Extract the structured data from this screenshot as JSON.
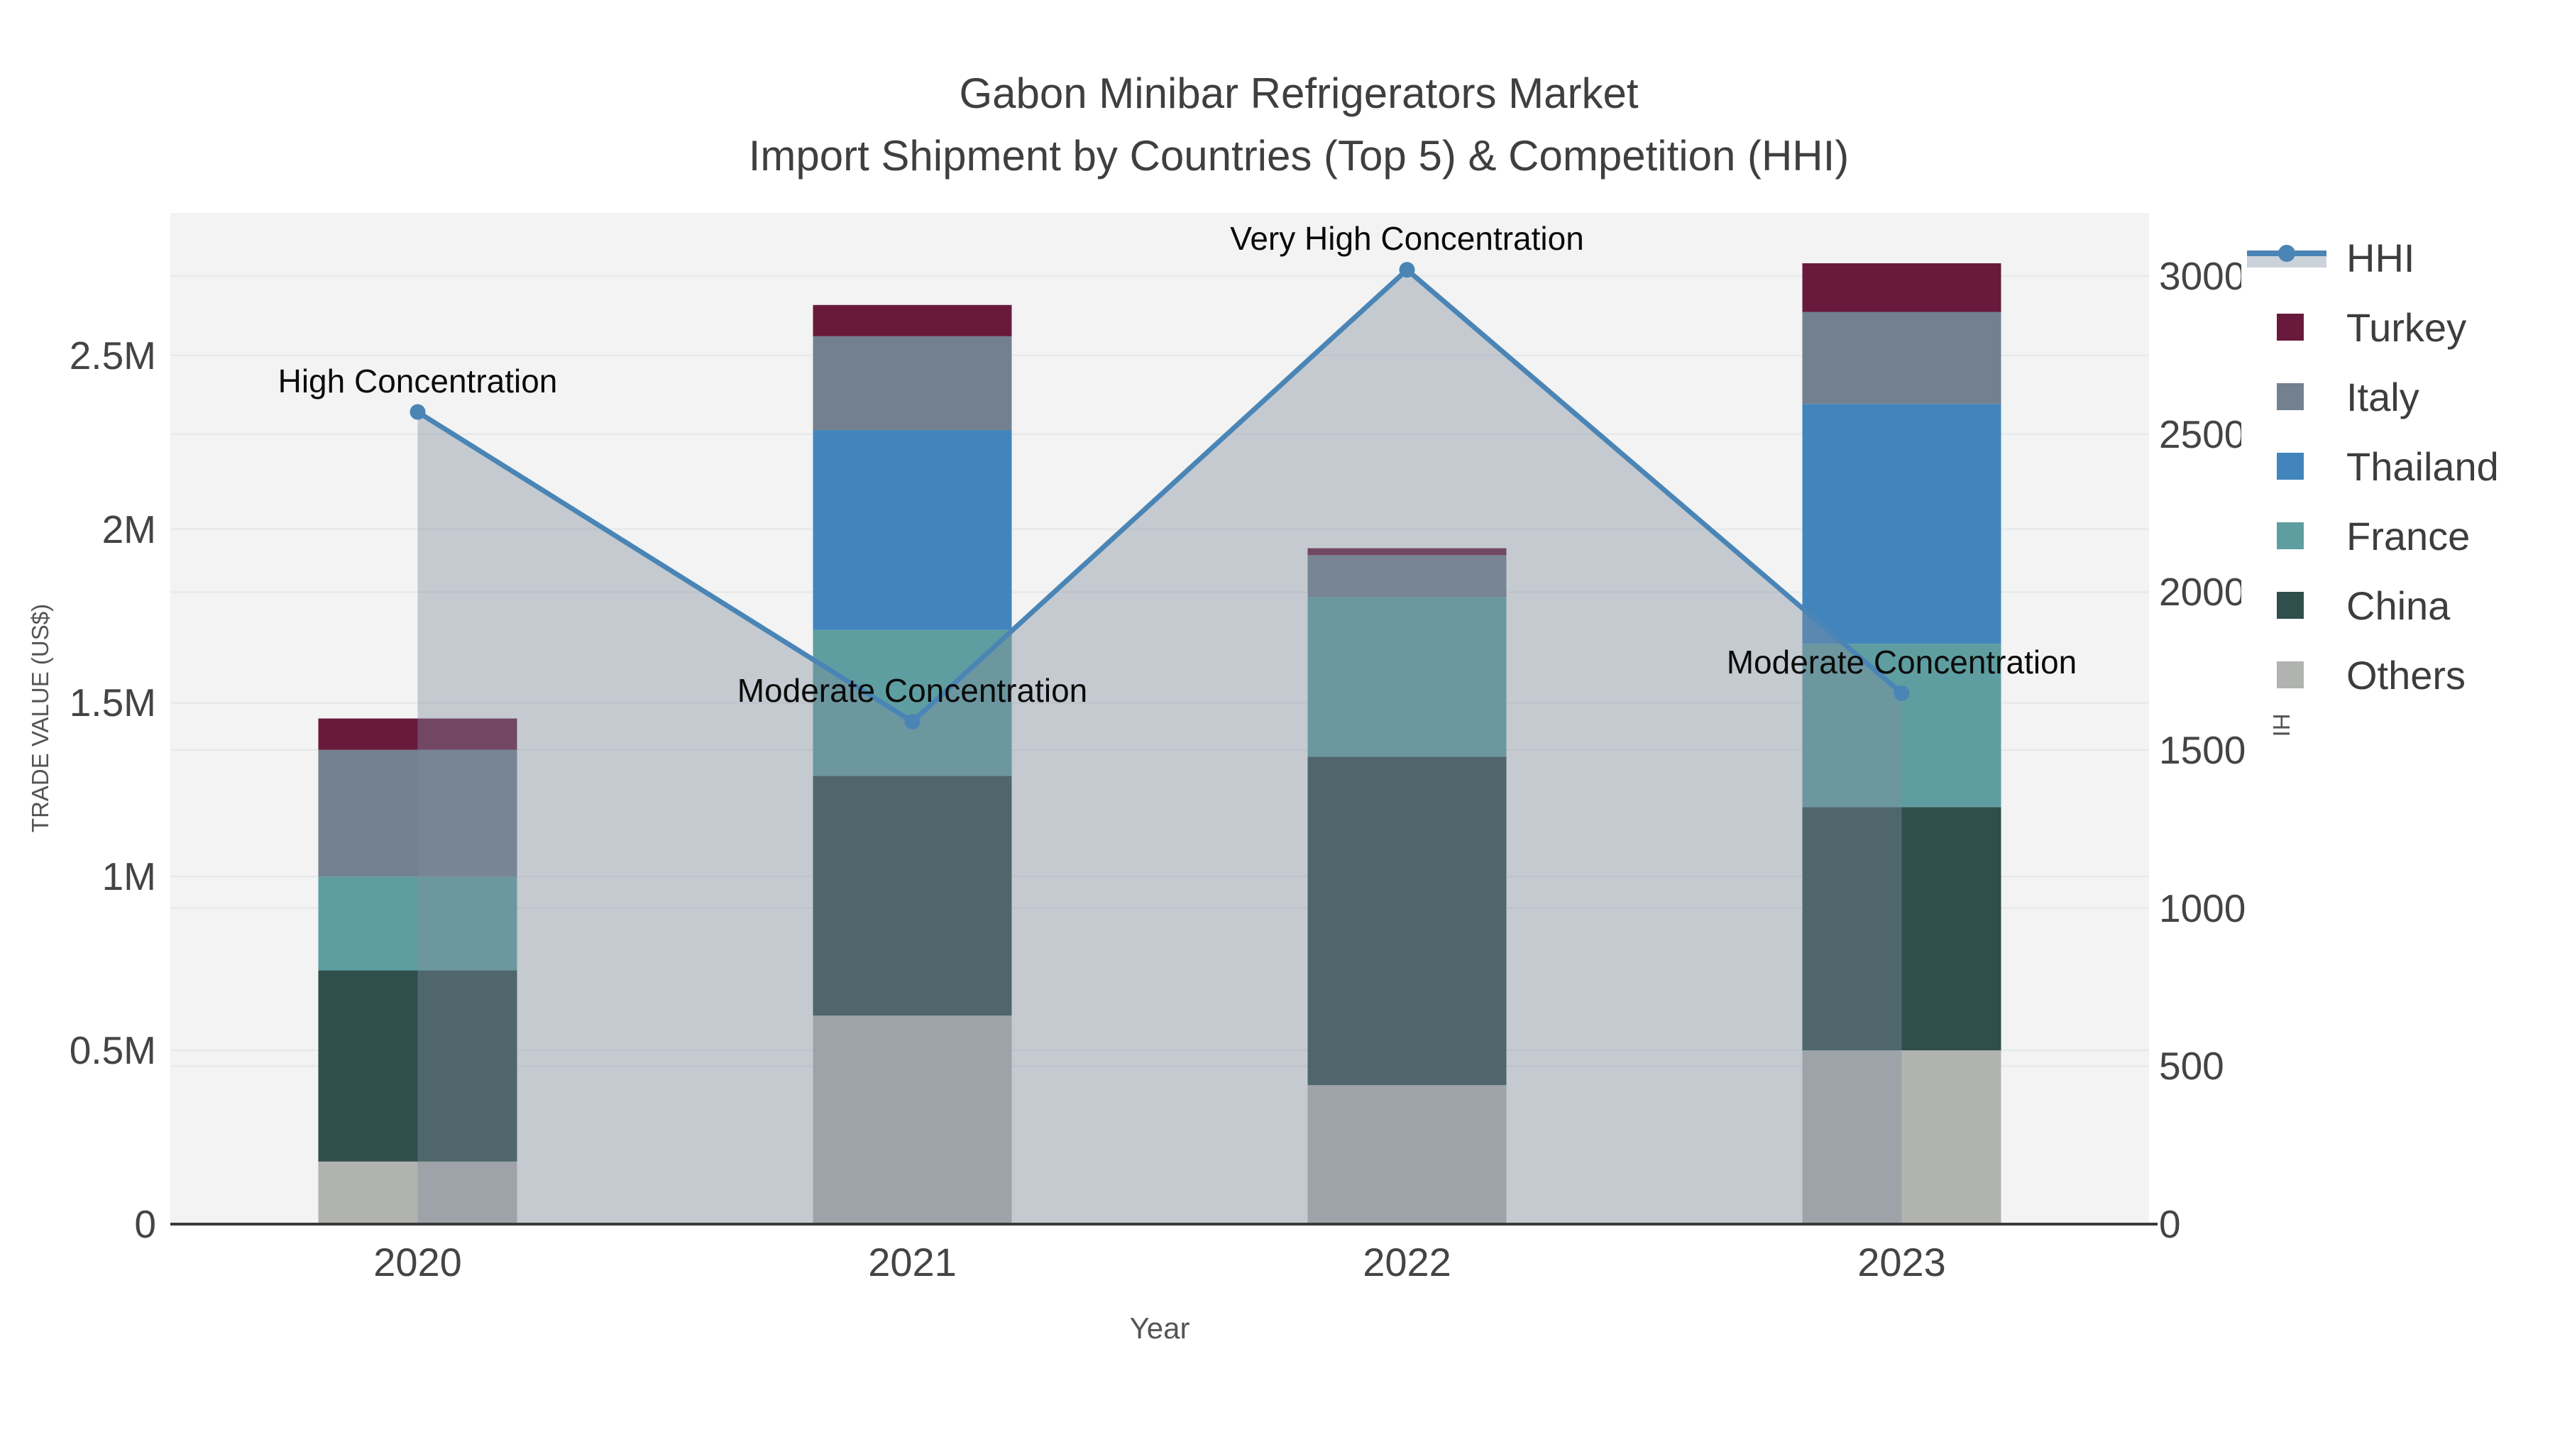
{
  "chart_data": {
    "type": "bar+line",
    "title": "Gabon Minibar Refrigerators Market",
    "subtitle": "Import Shipment by Countries (Top 5) & Competition (HHI)",
    "xlabel": "Year",
    "ylabel": "TRADE VALUE (US$)",
    "y2label": "HHI",
    "categories": [
      "2020",
      "2021",
      "2022",
      "2023"
    ],
    "stack_order_bottom_to_top": [
      "Others",
      "China",
      "France",
      "Thailand",
      "Italy",
      "Turkey"
    ],
    "series": [
      {
        "name": "Turkey",
        "color": "#691a3c",
        "values": [
          90000,
          90000,
          20000,
          140000
        ]
      },
      {
        "name": "Italy",
        "color": "#73808f",
        "values": [
          365000,
          270000,
          120000,
          265000
        ]
      },
      {
        "name": "Thailand",
        "color": "#4285bd",
        "values": [
          0,
          575000,
          0,
          690000
        ]
      },
      {
        "name": "France",
        "color": "#5f9ea0",
        "values": [
          270000,
          420000,
          460000,
          470000
        ]
      },
      {
        "name": "China",
        "color": "#2f4f4c",
        "values": [
          550000,
          690000,
          945000,
          700000
        ]
      },
      {
        "name": "Others",
        "color": "#b1b3b0",
        "values": [
          180000,
          600000,
          400000,
          500000
        ]
      }
    ],
    "line_series": {
      "name": "HHI",
      "color": "#4a85b6",
      "area_fill": "rgba(128,140,158,0.40)",
      "values": [
        2570,
        1590,
        3020,
        1680
      ],
      "annotations": [
        "High Concentration",
        "Moderate Concentration",
        "Very High Concentration",
        "Moderate Concentration"
      ]
    },
    "ylim": [
      0,
      2910000
    ],
    "y2lim": [
      0,
      3200
    ],
    "y_ticks": [
      {
        "label": "0",
        "value": 0
      },
      {
        "label": "0.5M",
        "value": 500000
      },
      {
        "label": "1M",
        "value": 1000000
      },
      {
        "label": "1.5M",
        "value": 1500000
      },
      {
        "label": "2M",
        "value": 2000000
      },
      {
        "label": "2.5M",
        "value": 2500000
      }
    ],
    "y2_ticks": [
      {
        "label": "0",
        "value": 0
      },
      {
        "label": "500",
        "value": 500
      },
      {
        "label": "1000",
        "value": 1000
      },
      {
        "label": "1500",
        "value": 1500
      },
      {
        "label": "2000",
        "value": 2000
      },
      {
        "label": "2500",
        "value": 2500
      },
      {
        "label": "3000",
        "value": 3000
      }
    ],
    "legend_position": "right",
    "grid": true,
    "colors": {
      "plot_background": "#f2f3f2",
      "grid_line": "#e5e7e8",
      "axis_line": "#3a3a3a",
      "tick_text": "#444444",
      "title_text": "#3f3f3f",
      "annotation_text": "#0b0b0b"
    }
  }
}
